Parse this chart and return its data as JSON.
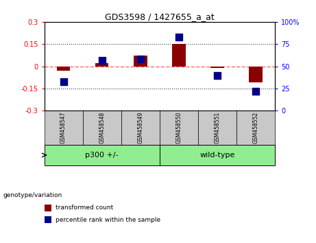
{
  "title": "GDS3598 / 1427655_a_at",
  "samples": [
    "GSM458547",
    "GSM458548",
    "GSM458549",
    "GSM458550",
    "GSM458551",
    "GSM458552"
  ],
  "red_values": [
    -0.03,
    0.02,
    0.07,
    0.152,
    -0.01,
    -0.11
  ],
  "blue_values_pct": [
    33,
    57,
    58,
    83,
    40,
    22
  ],
  "ylim_left": [
    -0.3,
    0.3
  ],
  "ylim_right": [
    0,
    100
  ],
  "left_ticks": [
    -0.3,
    -0.15,
    0,
    0.15,
    0.3
  ],
  "right_ticks": [
    0,
    25,
    50,
    75,
    100
  ],
  "left_tick_labels": [
    "-0.3",
    "-0.15",
    "0",
    "0.15",
    "0.3"
  ],
  "right_tick_labels": [
    "0",
    "25",
    "50",
    "75",
    "100%"
  ],
  "red_color": "#8B0000",
  "blue_color": "#00008B",
  "hline_color": "#FF6666",
  "dotted_color": "#333333",
  "group_label": "genotype/variation",
  "legend_red": "transformed count",
  "legend_blue": "percentile rank within the sample",
  "bar_width": 0.35,
  "square_size": 45,
  "groups_info": [
    {
      "name": "p300 +/-",
      "start": 0,
      "end": 2,
      "color": "#90EE90"
    },
    {
      "name": "wild-type",
      "start": 3,
      "end": 5,
      "color": "#90EE90"
    }
  ]
}
